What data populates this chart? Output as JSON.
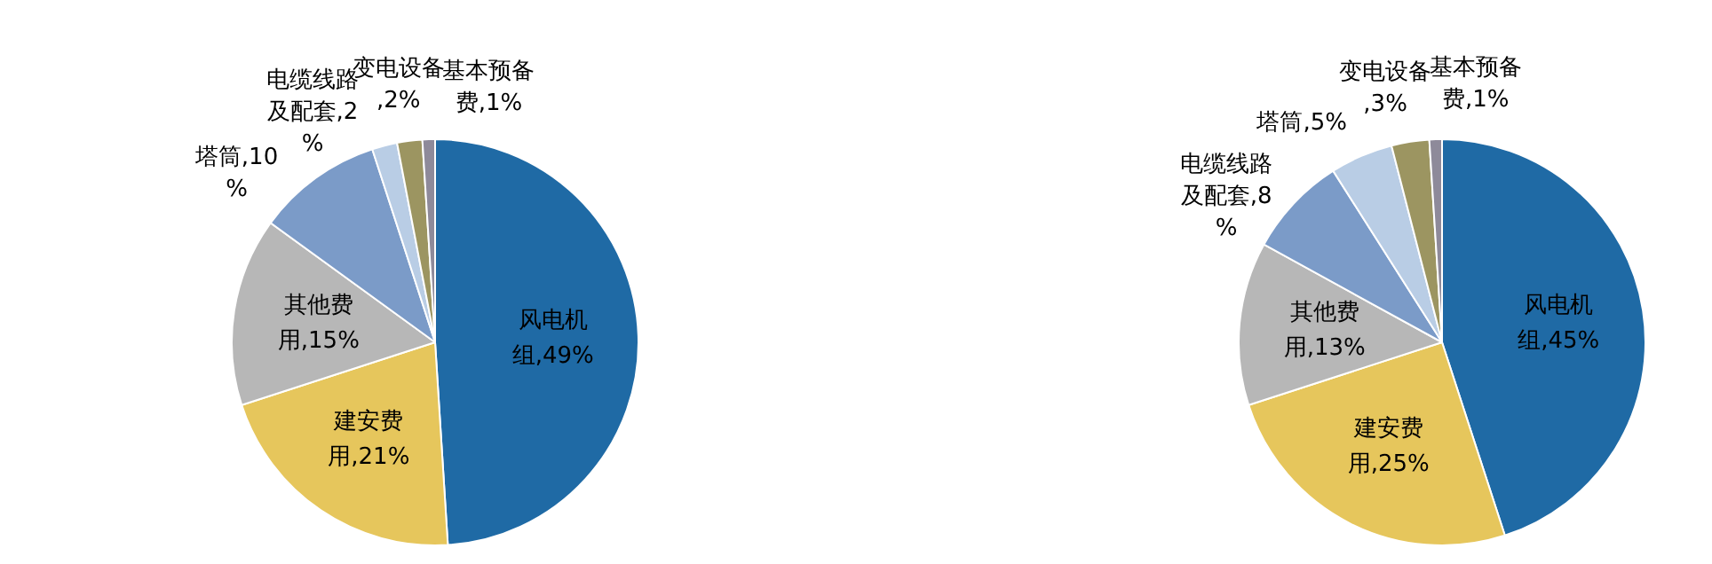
{
  "chart_data": [
    {
      "type": "pie",
      "categories": [
        "风电机组",
        "建安费用",
        "其他费用",
        "塔筒",
        "电缆线路及配套",
        "变电设备",
        "基本预备费"
      ],
      "values": [
        49,
        21,
        15,
        10,
        2,
        2,
        1
      ],
      "value_labels": [
        ",49%",
        ",21%",
        ",15%",
        ",10%",
        ",2%",
        ",2%",
        ",1%"
      ],
      "colors": [
        "#1f6aa5",
        "#e6c65c",
        "#b7b7b7",
        "#7b9bc8",
        "#b9cde5",
        "#9c9561",
        "#8e8a9a"
      ]
    },
    {
      "type": "pie",
      "categories": [
        "风电机组",
        "建安费用",
        "其他费用",
        "电缆线路及配套",
        "塔筒",
        "变电设备",
        "基本预备费"
      ],
      "values": [
        45,
        25,
        13,
        8,
        5,
        3,
        1
      ],
      "value_labels": [
        ",45%",
        ",25%",
        ",13%",
        ",8%",
        ",5%",
        ",3%",
        ",1%"
      ],
      "colors": [
        "#1f6aa5",
        "#e6c65c",
        "#b7b7b7",
        "#7b9bc8",
        "#b9cde5",
        "#9c9561",
        "#8e8a9a"
      ]
    }
  ]
}
